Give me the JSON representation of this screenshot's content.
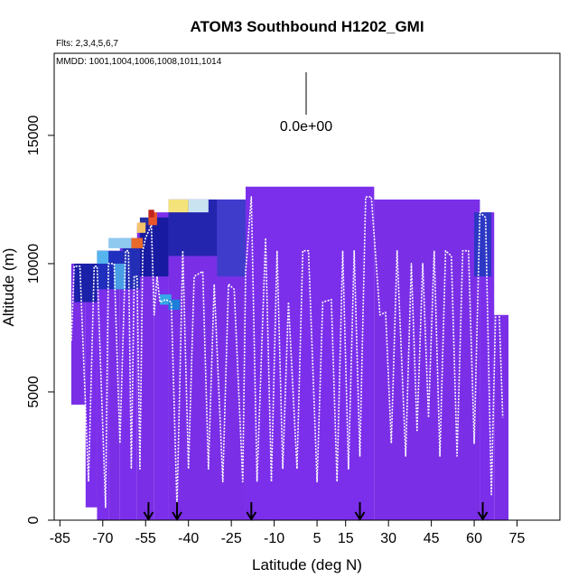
{
  "chart_data": {
    "type": "heatmap",
    "title": "ATOM3 Southbound H1202_GMI",
    "flights_note": "Flts: 2,3,4,5,6,7",
    "dates_note": "MMDD: 1001,1004,1006,1008,1011,1014",
    "xlabel": "Latitude (deg N)",
    "ylabel": "Altitude (m)",
    "xlim": [
      -87,
      90
    ],
    "ylim": [
      0,
      18200
    ],
    "x_ticks": [
      -85,
      -70,
      -55,
      -40,
      -25,
      -10,
      5,
      15,
      30,
      45,
      60,
      75
    ],
    "x_tick_labels": [
      "-85",
      "-70",
      "-55",
      "-40",
      "-25",
      "-10",
      "5",
      "15",
      "30",
      "45",
      "60",
      "75"
    ],
    "y_ticks": [
      0,
      5000,
      10000,
      15000
    ],
    "y_tick_labels": [
      "0",
      "5000",
      "10000",
      "15000"
    ],
    "scale_label": "0.0e+00",
    "marker_latitudes": [
      -54,
      -44,
      -18,
      20,
      63
    ],
    "curtain_blocks": [
      {
        "lat0": -81,
        "lat1": -76,
        "alt0": 4500,
        "alt1": 10000,
        "color": "#7a2fe6"
      },
      {
        "lat0": -76,
        "lat1": -72,
        "alt0": 500,
        "alt1": 10000,
        "color": "#7b2fea"
      },
      {
        "lat0": -72,
        "lat1": -68,
        "alt0": 0,
        "alt1": 10500,
        "color": "#7b2fea"
      },
      {
        "lat0": -68,
        "lat1": -64,
        "alt0": 0,
        "alt1": 10500,
        "color": "#7a2fe6"
      },
      {
        "lat0": -64,
        "lat1": -58,
        "alt0": 0,
        "alt1": 11000,
        "color": "#7b2fea"
      },
      {
        "lat0": -58,
        "lat1": -52,
        "alt0": 0,
        "alt1": 11500,
        "color": "#7a2fe6"
      },
      {
        "lat0": -52,
        "lat1": -47,
        "alt0": 0,
        "alt1": 12000,
        "color": "#7b2fea"
      },
      {
        "lat0": -47,
        "lat1": -20,
        "alt0": 0,
        "alt1": 12500,
        "color": "#7a2fe6"
      },
      {
        "lat0": -20,
        "lat1": 25,
        "alt0": 0,
        "alt1": 13000,
        "color": "#7b2fea"
      },
      {
        "lat0": 25,
        "lat1": 62,
        "alt0": 0,
        "alt1": 12500,
        "color": "#7a2fe6"
      },
      {
        "lat0": 62,
        "lat1": 67,
        "alt0": 0,
        "alt1": 12000,
        "color": "#7b2fea"
      },
      {
        "lat0": 67,
        "lat1": 72,
        "alt0": 0,
        "alt1": 8000,
        "color": "#7a2fe6"
      }
    ],
    "dark_blue_regions": [
      {
        "lat0": -80,
        "lat1": -72,
        "alt0": 8500,
        "alt1": 10000,
        "color": "#0f1fa0"
      },
      {
        "lat0": -72,
        "lat1": -63,
        "alt0": 9000,
        "alt1": 10500,
        "color": "#1630b8"
      },
      {
        "lat0": -63,
        "lat1": -57,
        "alt0": 9000,
        "alt1": 11000,
        "color": "#1a2fb0"
      },
      {
        "lat0": -57,
        "lat1": -47,
        "alt0": 9500,
        "alt1": 11800,
        "color": "#0d1a9a"
      },
      {
        "lat0": -47,
        "lat1": -30,
        "alt0": 10300,
        "alt1": 12500,
        "color": "#1a25a8"
      },
      {
        "lat0": -30,
        "lat1": -20,
        "alt0": 9500,
        "alt1": 12500,
        "color": "#3a3ec8"
      },
      {
        "lat0": 60,
        "lat1": 66,
        "alt0": 9500,
        "alt1": 12000,
        "color": "#2338c0"
      }
    ],
    "hot_regions": [
      {
        "lat0": -47,
        "lat1": -40,
        "alt0": 12000,
        "alt1": 12500,
        "color": "#f3e37a"
      },
      {
        "lat0": -40,
        "lat1": -33,
        "alt0": 12000,
        "alt1": 12500,
        "color": "#c9e4f0"
      },
      {
        "lat0": -54,
        "lat1": -51,
        "alt0": 11500,
        "alt1": 12000,
        "color": "#e8552a"
      },
      {
        "lat0": -54,
        "lat1": -52,
        "alt0": 11800,
        "alt1": 12100,
        "color": "#c0241c"
      },
      {
        "lat0": -58,
        "lat1": -55,
        "alt0": 11200,
        "alt1": 11600,
        "color": "#f4c36a"
      },
      {
        "lat0": -60,
        "lat1": -56,
        "alt0": 10600,
        "alt1": 11000,
        "color": "#e86a2a"
      },
      {
        "lat0": -68,
        "lat1": -60,
        "alt0": 10600,
        "alt1": 11000,
        "color": "#8fc9f0"
      },
      {
        "lat0": -72,
        "lat1": -68,
        "alt0": 10000,
        "alt1": 10500,
        "color": "#56b4ee"
      },
      {
        "lat0": -66,
        "lat1": -62,
        "alt0": 9000,
        "alt1": 10000,
        "color": "#4a9ee6"
      },
      {
        "lat0": -50,
        "lat1": -46,
        "alt0": 8400,
        "alt1": 8800,
        "color": "#35a8e8"
      },
      {
        "lat0": -47,
        "lat1": -43,
        "alt0": 8200,
        "alt1": 8600,
        "color": "#1e7fd8"
      }
    ],
    "flight_track": [
      [
        -81,
        7000
      ],
      [
        -80,
        9900
      ],
      [
        -78,
        9900
      ],
      [
        -75,
        1500
      ],
      [
        -73,
        9900
      ],
      [
        -72,
        9900
      ],
      [
        -69,
        500
      ],
      [
        -68,
        10000
      ],
      [
        -66,
        10000
      ],
      [
        -64,
        3000
      ],
      [
        -62,
        10500
      ],
      [
        -61,
        10500
      ],
      [
        -60,
        2000
      ],
      [
        -59,
        9500
      ],
      [
        -58,
        9500
      ],
      [
        -57,
        2000
      ],
      [
        -56,
        10500
      ],
      [
        -55,
        11000
      ],
      [
        -53,
        11500
      ],
      [
        -52,
        8000
      ],
      [
        -51,
        9500
      ],
      [
        -50,
        8500
      ],
      [
        -48,
        8600
      ],
      [
        -46,
        8500
      ],
      [
        -44,
        500
      ],
      [
        -42,
        10500
      ],
      [
        -40,
        2000
      ],
      [
        -38,
        9500
      ],
      [
        -35,
        9700
      ],
      [
        -33,
        2000
      ],
      [
        -31,
        9200
      ],
      [
        -28,
        1500
      ],
      [
        -26,
        9200
      ],
      [
        -24,
        9000
      ],
      [
        -21,
        1500
      ],
      [
        -20,
        9700
      ],
      [
        -18,
        12600
      ],
      [
        -16,
        1500
      ],
      [
        -13,
        11000
      ],
      [
        -11,
        1500
      ],
      [
        -9,
        10500
      ],
      [
        -7,
        2000
      ],
      [
        -5,
        8500
      ],
      [
        -2,
        2000
      ],
      [
        0,
        10500
      ],
      [
        2,
        10500
      ],
      [
        5,
        1500
      ],
      [
        7,
        8500
      ],
      [
        10,
        8600
      ],
      [
        12,
        1500
      ],
      [
        14,
        10500
      ],
      [
        16,
        2000
      ],
      [
        18,
        10500
      ],
      [
        20,
        2500
      ],
      [
        22,
        12600
      ],
      [
        24,
        12600
      ],
      [
        27,
        8000
      ],
      [
        29,
        8100
      ],
      [
        31,
        3000
      ],
      [
        33,
        10500
      ],
      [
        36,
        2500
      ],
      [
        38,
        10000
      ],
      [
        40,
        3500
      ],
      [
        42,
        10000
      ],
      [
        44,
        4000
      ],
      [
        46,
        10500
      ],
      [
        48,
        2500
      ],
      [
        50,
        10500
      ],
      [
        52,
        10300
      ],
      [
        54,
        2500
      ],
      [
        56,
        10500
      ],
      [
        58,
        10500
      ],
      [
        60,
        3000
      ],
      [
        62,
        12000
      ],
      [
        64,
        11800
      ],
      [
        66,
        1000
      ],
      [
        68,
        10500
      ],
      [
        70,
        4000
      ]
    ]
  }
}
